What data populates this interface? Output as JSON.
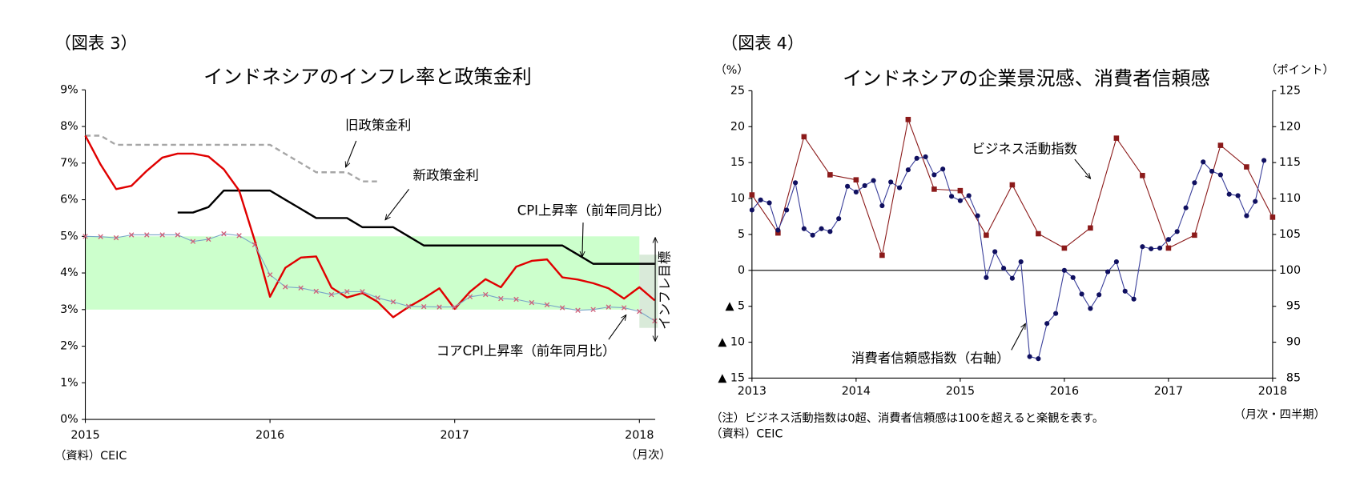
{
  "chart_data": [
    {
      "type": "line",
      "figure_label": "（図表 3）",
      "title": "インドネシアのインフレ率と政策金利",
      "source": "（資料）CEIC",
      "x_unit": "（月次）",
      "x": [
        2015,
        2015.083,
        2015.167,
        2015.25,
        2015.333,
        2015.417,
        2015.5,
        2015.583,
        2015.667,
        2015.75,
        2015.833,
        2015.917,
        2016,
        2016.083,
        2016.167,
        2016.25,
        2016.333,
        2016.417,
        2016.5,
        2016.583,
        2016.667,
        2016.75,
        2016.833,
        2016.917,
        2017,
        2017.083,
        2017.167,
        2017.25,
        2017.333,
        2017.417,
        2017.5,
        2017.583,
        2017.667,
        2017.75,
        2017.833,
        2017.917,
        2018,
        2018.083
      ],
      "xlim": [
        2015,
        2018.1
      ],
      "xticks": [
        2015,
        2016,
        2017,
        2018
      ],
      "ylim": [
        0,
        9
      ],
      "yticks": [
        {
          "value": 0,
          "label": "0%"
        },
        {
          "value": 1,
          "label": "1%"
        },
        {
          "value": 2,
          "label": "2%"
        },
        {
          "value": 3,
          "label": "3%"
        },
        {
          "value": 4,
          "label": "4%"
        },
        {
          "value": 5,
          "label": "5%"
        },
        {
          "value": 6,
          "label": "6%"
        },
        {
          "value": 7,
          "label": "7%"
        },
        {
          "value": 8,
          "label": "8%"
        },
        {
          "value": 9,
          "label": "9%"
        }
      ],
      "bands": [
        {
          "x": [
            2015,
            2018
          ],
          "y": [
            3,
            5
          ]
        },
        {
          "x": [
            2018,
            2018.1
          ],
          "y": [
            2.5,
            4.5
          ]
        }
      ],
      "band_color": "#ccffcc",
      "band_label": "インフレ目標",
      "series": [
        {
          "name": "旧政策金利",
          "color": "#a6a6a6",
          "dash": true,
          "values": [
            7.75,
            7.75,
            7.5,
            7.5,
            7.5,
            7.5,
            7.5,
            7.5,
            7.5,
            7.5,
            7.5,
            7.5,
            7.5,
            7.25,
            7.0,
            6.75,
            6.75,
            6.75,
            6.5,
            6.5,
            null,
            null,
            null,
            null,
            null,
            null,
            null,
            null,
            null,
            null,
            null,
            null,
            null,
            null,
            null,
            null,
            null,
            null
          ]
        },
        {
          "name": "新政策金利",
          "color": "#000000",
          "values": [
            null,
            null,
            null,
            null,
            null,
            null,
            5.65,
            5.65,
            5.8,
            6.25,
            6.25,
            6.25,
            6.25,
            6.0,
            5.75,
            5.5,
            5.5,
            5.5,
            5.25,
            5.25,
            5.25,
            5.0,
            4.75,
            4.75,
            4.75,
            4.75,
            4.75,
            4.75,
            4.75,
            4.75,
            4.75,
            4.75,
            4.5,
            4.25,
            4.25,
            4.25,
            4.25,
            4.25
          ]
        },
        {
          "name": "CPI上昇率（前年同月比）",
          "color": "#e00000",
          "values": [
            7.75,
            6.96,
            6.29,
            6.38,
            6.79,
            7.15,
            7.26,
            7.26,
            7.18,
            6.83,
            6.25,
            4.89,
            3.35,
            4.14,
            4.42,
            4.45,
            3.6,
            3.33,
            3.45,
            3.21,
            2.79,
            3.07,
            3.31,
            3.58,
            3.02,
            3.49,
            3.83,
            3.61,
            4.17,
            4.33,
            4.37,
            3.88,
            3.82,
            3.72,
            3.58,
            3.3,
            3.61,
            3.25
          ]
        },
        {
          "name": "コアCPI上昇率（前年同月比）",
          "color": "#7aa6c8",
          "marker": "x",
          "marker_color": "#d0607a",
          "values": [
            5.0,
            4.99,
            4.96,
            5.04,
            5.04,
            5.04,
            5.04,
            4.86,
            4.92,
            5.07,
            5.02,
            4.77,
            3.95,
            3.62,
            3.59,
            3.5,
            3.41,
            3.49,
            3.49,
            3.32,
            3.21,
            3.09,
            3.08,
            3.07,
            3.07,
            3.35,
            3.41,
            3.3,
            3.28,
            3.19,
            3.13,
            3.05,
            2.98,
            3.0,
            3.07,
            3.05,
            2.95,
            2.69
          ]
        }
      ]
    },
    {
      "type": "line",
      "figure_label": "（図表 4）",
      "title": "インドネシアの企業景況感、消費者信頼感",
      "y_unit": "（%）",
      "y2_unit": "（ポイント）",
      "x_unit": "（月次・四半期）",
      "note": "（注）ビジネス活動指数は0超、消費者信頼感は100を超えると楽観を表す。",
      "source": "（資料）CEIC",
      "xlim": [
        2013,
        2018
      ],
      "xticks": [
        2013,
        2014,
        2015,
        2016,
        2017,
        2018
      ],
      "ylim": [
        -15,
        25
      ],
      "yticks": [
        {
          "value": -15,
          "label": "▲ 15"
        },
        {
          "value": -10,
          "label": "▲ 10"
        },
        {
          "value": -5,
          "label": "▲ 5"
        },
        0,
        5,
        10,
        15,
        20,
        25
      ],
      "y2lim": [
        85,
        125
      ],
      "y2ticks": [
        85,
        90,
        95,
        100,
        105,
        110,
        115,
        120,
        125
      ],
      "zero_line": true,
      "series": [
        {
          "name": "ビジネス活動指数",
          "color": "#8b1a1a",
          "marker": "square",
          "x": [
            2013,
            2013.25,
            2013.5,
            2013.75,
            2014,
            2014.25,
            2014.5,
            2014.75,
            2015,
            2015.25,
            2015.5,
            2015.75,
            2016,
            2016.25,
            2016.5,
            2016.75,
            2017,
            2017.25,
            2017.5,
            2017.75,
            2018
          ],
          "values": [
            10.5,
            5.2,
            18.6,
            13.3,
            12.6,
            2.1,
            21.0,
            11.3,
            11.1,
            4.9,
            11.9,
            5.1,
            3.1,
            5.9,
            18.4,
            13.2,
            3.1,
            4.9,
            17.4,
            14.4,
            7.4
          ]
        },
        {
          "name": "消費者信頼感指数（右軸）",
          "color": "#3a3f9a",
          "marker": "circle",
          "marker_color": "#101060",
          "axis": "y2",
          "x": [
            2013,
            2013.083,
            2013.167,
            2013.25,
            2013.333,
            2013.417,
            2013.5,
            2013.583,
            2013.667,
            2013.75,
            2013.833,
            2013.917,
            2014,
            2014.083,
            2014.167,
            2014.25,
            2014.333,
            2014.417,
            2014.5,
            2014.583,
            2014.667,
            2014.75,
            2014.833,
            2014.917,
            2015,
            2015.083,
            2015.167,
            2015.25,
            2015.333,
            2015.417,
            2015.5,
            2015.583,
            2015.667,
            2015.75,
            2015.833,
            2015.917,
            2016,
            2016.083,
            2016.167,
            2016.25,
            2016.333,
            2016.417,
            2016.5,
            2016.583,
            2016.667,
            2016.75,
            2016.833,
            2016.917,
            2017,
            2017.083,
            2017.167,
            2017.25,
            2017.333,
            2017.417,
            2017.5,
            2017.583,
            2017.667,
            2017.75,
            2017.833,
            2017.917
          ],
          "values": [
            108.4,
            109.8,
            109.4,
            105.6,
            108.4,
            112.2,
            105.8,
            104.9,
            105.8,
            105.4,
            107.2,
            111.7,
            110.9,
            111.8,
            112.5,
            109.0,
            112.3,
            111.5,
            114.0,
            115.6,
            115.8,
            113.3,
            114.1,
            110.3,
            109.7,
            110.4,
            107.6,
            99.0,
            102.6,
            100.3,
            98.9,
            101.2,
            88.0,
            87.7,
            92.6,
            94.0,
            100.0,
            99.0,
            96.7,
            94.7,
            96.6,
            99.8,
            101.2,
            97.1,
            96.0,
            103.3,
            103.0,
            103.1,
            104.3,
            105.4,
            108.7,
            112.2,
            115.1,
            113.8,
            113.3,
            110.6,
            110.4,
            107.6,
            109.6,
            115.3
          ]
        }
      ]
    }
  ]
}
